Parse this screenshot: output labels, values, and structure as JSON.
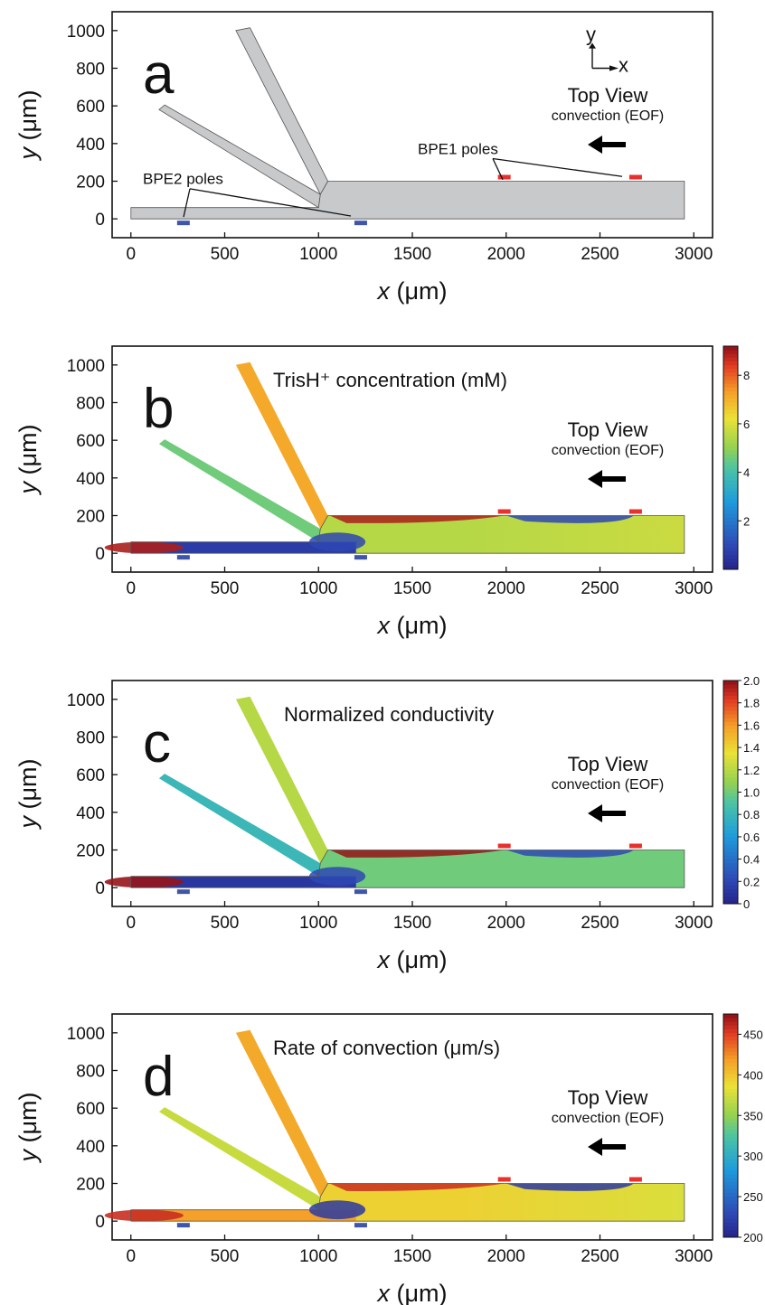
{
  "figure": {
    "x_axis_title_var": "x",
    "x_axis_title_unit": " (μm)",
    "y_axis_title_var": "y",
    "y_axis_title_unit": " (μm)",
    "axes_glyph": {
      "y": "y",
      "x": "x"
    },
    "colors": {
      "bpe1_poles": "#e8302c",
      "bpe2_poles": "#3f56a8",
      "channel_gray": "#c7c9cb",
      "arrow": "#000000"
    }
  },
  "chart_data": [
    {
      "panel": "a",
      "type": "heatmap",
      "label": "a",
      "title": "",
      "top_view": "Top View",
      "convection": "convection (EOF)",
      "bpe1_label": "BPE1 poles",
      "bpe2_label": "BPE2 poles",
      "xlim": [
        -100,
        3100
      ],
      "ylim": [
        -100,
        1100
      ],
      "xticks": [
        0,
        500,
        1000,
        1500,
        2000,
        2500,
        3000
      ],
      "yticks": [
        0,
        200,
        400,
        600,
        800,
        1000
      ],
      "colorbar": null
    },
    {
      "panel": "b",
      "type": "heatmap",
      "label": "b",
      "title": "TrisH⁺ concentration (mM)",
      "top_view": "Top View",
      "convection": "convection (EOF)",
      "xlim": [
        -100,
        3100
      ],
      "ylim": [
        -100,
        1100
      ],
      "xticks": [
        0,
        500,
        1000,
        1500,
        2000,
        2500,
        3000
      ],
      "yticks": [
        0,
        200,
        400,
        600,
        800,
        1000
      ],
      "colorbar": {
        "min": 0,
        "max": 9.2,
        "ticks": [
          "2",
          "4",
          "6",
          "8"
        ],
        "tick_values": [
          2,
          4,
          6,
          8
        ]
      },
      "field_values": {
        "upper_branch": 7.2,
        "lower_branch": 4.6,
        "bottom_inlet": 0.6,
        "main_channel": 5.5,
        "right_end": 5.8,
        "depletion_zone": 0.9,
        "enrichment_zone": 9.0
      }
    },
    {
      "panel": "c",
      "type": "heatmap",
      "label": "c",
      "title": "Normalized conductivity",
      "top_view": "Top View",
      "convection": "convection (EOF)",
      "xlim": [
        -100,
        3100
      ],
      "ylim": [
        -100,
        1100
      ],
      "xticks": [
        0,
        500,
        1000,
        1500,
        2000,
        2500,
        3000
      ],
      "yticks": [
        0,
        200,
        400,
        600,
        800,
        1000
      ],
      "colorbar": {
        "min": 0,
        "max": 2.0,
        "ticks": [
          "0",
          "0.2",
          "0.4",
          "0.6",
          "0.8",
          "1.0",
          "1.2",
          "1.4",
          "1.6",
          "1.8",
          "2.0"
        ],
        "tick_values": [
          0,
          0.2,
          0.4,
          0.6,
          0.8,
          1.0,
          1.2,
          1.4,
          1.6,
          1.8,
          2.0
        ]
      },
      "field_values": {
        "upper_branch": 1.2,
        "lower_branch": 0.8,
        "bottom_inlet": 0.1,
        "main_channel": 1.0,
        "right_end": 1.0,
        "depletion_zone": 0.2,
        "enrichment_zone": 2.0
      }
    },
    {
      "panel": "d",
      "type": "heatmap",
      "label": "d",
      "title": "Rate of convection (μm/s)",
      "top_view": "Top View",
      "convection": "convection (EOF)",
      "xlim": [
        -100,
        3100
      ],
      "ylim": [
        -100,
        1100
      ],
      "xticks": [
        0,
        500,
        1000,
        1500,
        2000,
        2500,
        3000
      ],
      "yticks": [
        0,
        200,
        400,
        600,
        800,
        1000
      ],
      "colorbar": {
        "min": 200,
        "max": 475,
        "ticks": [
          "200",
          "250",
          "300",
          "350",
          "400",
          "450"
        ],
        "tick_values": [
          200,
          250,
          300,
          350,
          400,
          450
        ]
      },
      "field_values": {
        "upper_branch": 415,
        "lower_branch": 372,
        "bottom_inlet": 420,
        "main_channel": 395,
        "right_end": 380,
        "depletion_zone": 215,
        "enrichment_zone": 460
      }
    }
  ]
}
